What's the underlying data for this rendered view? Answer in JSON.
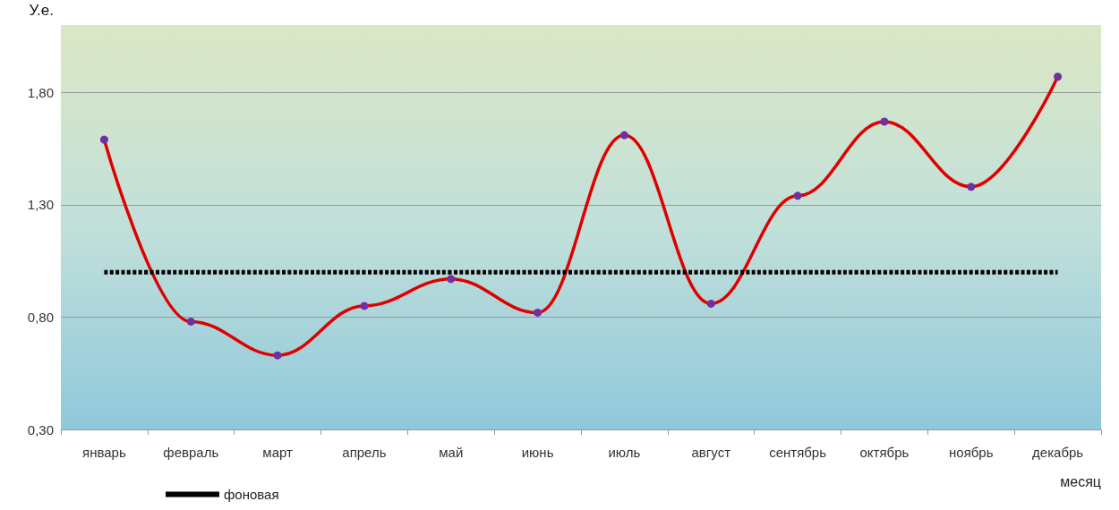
{
  "chart_data": {
    "type": "line",
    "ylabel": "У.е.",
    "xlabel": "месяц",
    "categories": [
      "январь",
      "февраль",
      "март",
      "апрель",
      "май",
      "июнь",
      "июль",
      "август",
      "сентябрь",
      "октябрь",
      "ноябрь",
      "декабрь"
    ],
    "series": [
      {
        "color": "#e00000",
        "colors": [
          "#7030a0",
          "#7030a0",
          "#7030a0",
          "#7030a0",
          "#7030a0",
          "#7030a0",
          "#7030a0",
          "#7030a0",
          "#7030a0",
          "#7030a0",
          "#7030a0",
          "#7030a0"
        ],
        "marker": "circle",
        "line_style": "solid",
        "values": [
          1.59,
          0.78,
          0.63,
          0.85,
          0.97,
          0.82,
          1.61,
          0.86,
          1.34,
          1.67,
          1.38,
          1.87
        ]
      },
      {
        "name": "фоновая",
        "color": "#000000",
        "marker": "none",
        "line_style": "dashed",
        "values": [
          1.0,
          1.0,
          1.0,
          1.0,
          1.0,
          1.0,
          1.0,
          1.0,
          1.0,
          1.0,
          1.0,
          1.0
        ]
      }
    ],
    "ylim": [
      0.3,
      2.1
    ],
    "yticks": [
      {
        "value": 0.3,
        "label": "0,30"
      },
      {
        "value": 0.8,
        "label": "0,80"
      },
      {
        "value": 1.3,
        "label": "1,30"
      },
      {
        "value": 1.8,
        "label": "1,80"
      }
    ],
    "grid": "y",
    "legend": "bottom left"
  }
}
